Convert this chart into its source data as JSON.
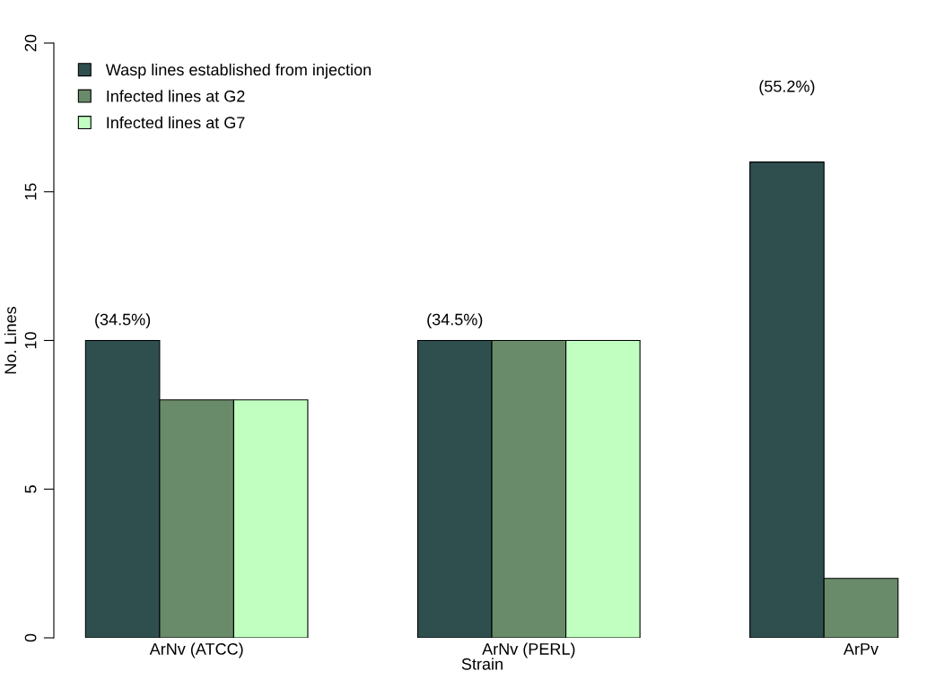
{
  "chart_data": {
    "type": "bar",
    "xlabel": "Strain",
    "ylabel": "No. Lines",
    "categories": [
      "ArNv (ATCC)",
      "ArNv (PERL)",
      "ArPv"
    ],
    "series": [
      {
        "name": "Wasp lines established from injection",
        "color": "#2f4f4f",
        "values": [
          10,
          10,
          16
        ]
      },
      {
        "name": "Infected lines at G2",
        "color": "#698b69",
        "values": [
          8,
          10,
          2
        ]
      },
      {
        "name": "Infected lines at G7",
        "color": "#c1ffc1",
        "values": [
          8,
          10,
          null
        ]
      }
    ],
    "ylim": [
      0,
      20
    ],
    "yticks": [
      0,
      5,
      10,
      15,
      20
    ],
    "grid": false,
    "legend": "top left",
    "annotations": [
      "(34.5%)",
      "(34.5%)",
      "(55.2%)"
    ]
  }
}
